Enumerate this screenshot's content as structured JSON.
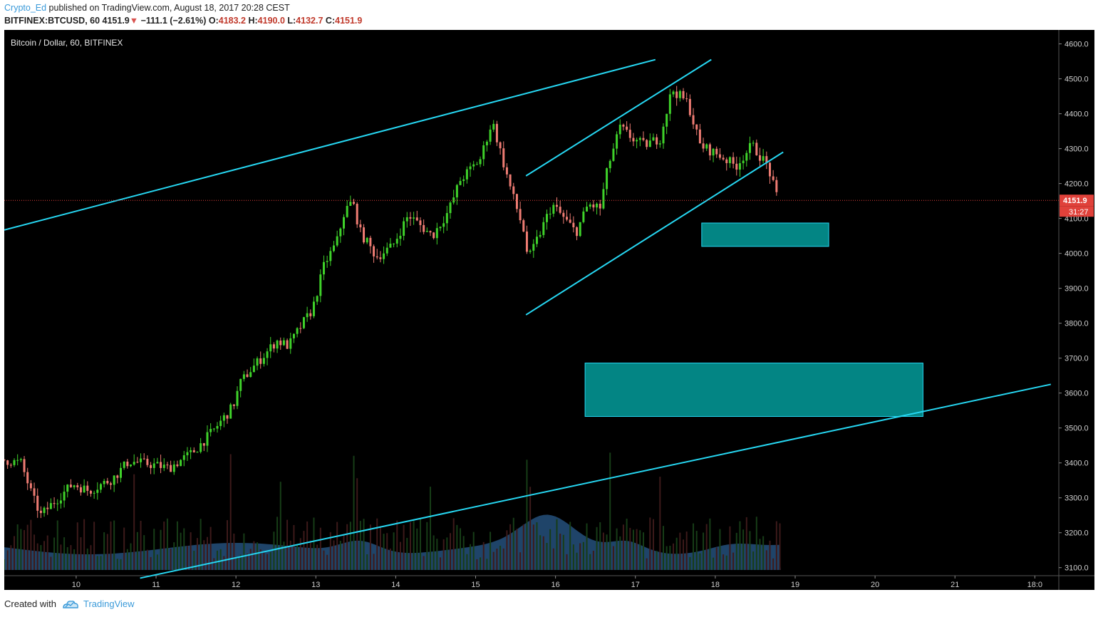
{
  "header": {
    "author": "Crypto_Ed",
    "published_text": "published on TradingView.com, August 18, 2017 20:28 CEST",
    "symbol_line": {
      "symbol": "BITFINEX:BTCUSD, 60",
      "last": "4151.9",
      "change": "−111.1 (−2.61%)",
      "open_label": "O:",
      "open": "4183.2",
      "high_label": "H:",
      "high": "4190.0",
      "low_label": "L:",
      "low": "4132.7",
      "close_label": "C:",
      "close": "4151.9"
    }
  },
  "footer": {
    "created_with": "Created with",
    "brand": "TradingView"
  },
  "colors": {
    "background": "#000000",
    "up": "#3fd22a",
    "down": "#ef7c73",
    "trendline": "#26d7f2",
    "zone_fill": "#038584",
    "zone_stroke": "#26d7f2",
    "price_line": "#e0413a",
    "volume_area": "#2a5b8c",
    "axis_text": "#cfcfcf"
  },
  "chart_data": {
    "type": "candlestick",
    "title": "Bitcoin / Dollar, 60, BITFINEX",
    "x_unit": "day (August 2017)",
    "x_range": [
      9.1,
      22.3
    ],
    "x_ticks": [
      {
        "value": 10,
        "label": "10"
      },
      {
        "value": 11,
        "label": "11"
      },
      {
        "value": 12,
        "label": "12"
      },
      {
        "value": 13,
        "label": "13"
      },
      {
        "value": 14,
        "label": "14"
      },
      {
        "value": 15,
        "label": "15"
      },
      {
        "value": 16,
        "label": "16"
      },
      {
        "value": 17,
        "label": "17"
      },
      {
        "value": 18,
        "label": "18"
      },
      {
        "value": 19,
        "label": "19"
      },
      {
        "value": 20,
        "label": "20"
      },
      {
        "value": 21,
        "label": "21"
      },
      {
        "value": 22,
        "label": "18:0"
      }
    ],
    "y_range": [
      3077,
      4640
    ],
    "y_ticks": [
      "4600.0",
      "4500.0",
      "4400.0",
      "4300.0",
      "4200.0",
      "4100.0",
      "4000.0",
      "3900.0",
      "3800.0",
      "3700.0",
      "3600.0",
      "3500.0",
      "3400.0",
      "3300.0",
      "3200.0",
      "3100.0"
    ],
    "last_price": {
      "value": 4151.9,
      "label": "4151.9",
      "countdown": "31:27"
    },
    "price_path": [
      [
        9.1,
        3410
      ],
      [
        9.35,
        3400
      ],
      [
        9.5,
        3300
      ],
      [
        9.6,
        3250
      ],
      [
        9.75,
        3285
      ],
      [
        10.0,
        3340
      ],
      [
        10.2,
        3320
      ],
      [
        10.5,
        3355
      ],
      [
        10.7,
        3405
      ],
      [
        11.0,
        3395
      ],
      [
        11.2,
        3385
      ],
      [
        11.5,
        3430
      ],
      [
        11.75,
        3490
      ],
      [
        12.0,
        3560
      ],
      [
        12.1,
        3630
      ],
      [
        12.2,
        3660
      ],
      [
        12.4,
        3710
      ],
      [
        12.55,
        3750
      ],
      [
        12.7,
        3735
      ],
      [
        12.85,
        3790
      ],
      [
        13.0,
        3840
      ],
      [
        13.15,
        3970
      ],
      [
        13.3,
        4030
      ],
      [
        13.4,
        4120
      ],
      [
        13.5,
        4150
      ],
      [
        13.6,
        4060
      ],
      [
        13.8,
        3990
      ],
      [
        14.0,
        4020
      ],
      [
        14.2,
        4110
      ],
      [
        14.5,
        4050
      ],
      [
        14.7,
        4120
      ],
      [
        14.85,
        4210
      ],
      [
        15.1,
        4270
      ],
      [
        15.25,
        4380
      ],
      [
        15.4,
        4250
      ],
      [
        15.5,
        4170
      ],
      [
        15.65,
        4060
      ],
      [
        15.7,
        3980
      ],
      [
        15.85,
        4060
      ],
      [
        16.0,
        4140
      ],
      [
        16.15,
        4100
      ],
      [
        16.3,
        4060
      ],
      [
        16.45,
        4140
      ],
      [
        16.6,
        4130
      ],
      [
        16.7,
        4250
      ],
      [
        16.85,
        4360
      ],
      [
        17.0,
        4330
      ],
      [
        17.15,
        4310
      ],
      [
        17.35,
        4330
      ],
      [
        17.5,
        4470
      ],
      [
        17.7,
        4430
      ],
      [
        17.85,
        4310
      ],
      [
        18.1,
        4280
      ],
      [
        18.3,
        4250
      ],
      [
        18.5,
        4310
      ],
      [
        18.7,
        4250
      ],
      [
        18.82,
        4151.9
      ]
    ],
    "trendlines": [
      {
        "from": [
          9.1,
          4067
        ],
        "to": [
          17.25,
          4555
        ]
      },
      {
        "from": [
          15.63,
          4222
        ],
        "to": [
          17.95,
          4555
        ]
      },
      {
        "from": [
          15.63,
          3824
        ],
        "to": [
          18.85,
          4290
        ]
      },
      {
        "from": [
          10.8,
          3070
        ],
        "to": [
          22.2,
          3625
        ]
      }
    ],
    "zones": [
      {
        "x0": 17.83,
        "x1": 19.42,
        "y0": 4020,
        "y1": 4087
      },
      {
        "x0": 16.37,
        "x1": 20.6,
        "y0": 3533,
        "y1": 3686
      }
    ]
  }
}
